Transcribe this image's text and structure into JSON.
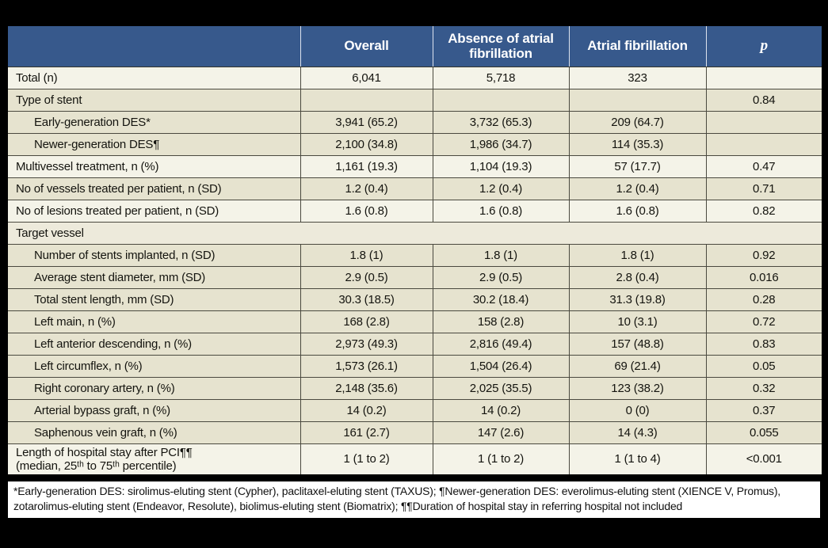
{
  "colors": {
    "header_blue": "#37598c",
    "row_light": "#f4f3e8",
    "row_beige": "#e6e3cf",
    "row_section": "#edeadb",
    "page_background": "#000000",
    "footnote_background": "#ffffff"
  },
  "table": {
    "columns": [
      "",
      "Overall",
      "Absence of atrial fibrillation",
      "Atrial fibrillation",
      "p"
    ],
    "rows": [
      {
        "label": "Total (n)",
        "indent": false,
        "shade": "light",
        "full_width": false,
        "values": [
          "6,041",
          "5,718",
          "323",
          ""
        ]
      },
      {
        "label": "Type of stent",
        "indent": false,
        "shade": "beige",
        "full_width": false,
        "values": [
          "",
          "",
          "",
          "0.84"
        ]
      },
      {
        "label": "Early-generation DES*",
        "indent": true,
        "shade": "beige",
        "full_width": false,
        "values": [
          "3,941 (65.2)",
          "3,732 (65.3)",
          "209 (64.7)",
          ""
        ]
      },
      {
        "label": "Newer-generation DES¶",
        "indent": true,
        "shade": "beige",
        "full_width": false,
        "values": [
          "2,100 (34.8)",
          "1,986 (34.7)",
          "114 (35.3)",
          ""
        ]
      },
      {
        "label": "Multivessel treatment, n (%)",
        "indent": false,
        "shade": "light",
        "full_width": false,
        "values": [
          "1,161 (19.3)",
          "1,104 (19.3)",
          "57 (17.7)",
          "0.47"
        ]
      },
      {
        "label": "No of vessels treated per patient, n (SD)",
        "indent": false,
        "shade": "beige",
        "full_width": false,
        "values": [
          "1.2 (0.4)",
          "1.2 (0.4)",
          "1.2 (0.4)",
          "0.71"
        ]
      },
      {
        "label": "No of lesions treated per patient, n (SD)",
        "indent": false,
        "shade": "light",
        "full_width": false,
        "values": [
          "1.6 (0.8)",
          "1.6 (0.8)",
          "1.6 (0.8)",
          "0.82"
        ]
      },
      {
        "label": "Target vessel",
        "indent": false,
        "shade": "mid",
        "full_width": true,
        "values": [
          "",
          "",
          "",
          ""
        ]
      },
      {
        "label": "Number of stents implanted, n (SD)",
        "indent": true,
        "shade": "beige",
        "full_width": false,
        "values": [
          "1.8 (1)",
          "1.8 (1)",
          "1.8 (1)",
          "0.92"
        ]
      },
      {
        "label": "Average stent diameter, mm (SD)",
        "indent": true,
        "shade": "beige",
        "full_width": false,
        "values": [
          "2.9 (0.5)",
          "2.9 (0.5)",
          "2.8 (0.4)",
          "0.016"
        ]
      },
      {
        "label": "Total stent length, mm (SD)",
        "indent": true,
        "shade": "beige",
        "full_width": false,
        "values": [
          "30.3 (18.5)",
          "30.2 (18.4)",
          "31.3 (19.8)",
          "0.28"
        ]
      },
      {
        "label": "Left main, n (%)",
        "indent": true,
        "shade": "beige",
        "full_width": false,
        "values": [
          "168 (2.8)",
          "158 (2.8)",
          "10 (3.1)",
          "0.72"
        ]
      },
      {
        "label": "Left anterior descending, n (%)",
        "indent": true,
        "shade": "beige",
        "full_width": false,
        "values": [
          "2,973 (49.3)",
          "2,816 (49.4)",
          "157 (48.8)",
          "0.83"
        ]
      },
      {
        "label": "Left circumflex, n (%)",
        "indent": true,
        "shade": "beige",
        "full_width": false,
        "values": [
          "1,573 (26.1)",
          "1,504 (26.4)",
          "69 (21.4)",
          "0.05"
        ]
      },
      {
        "label": "Right coronary artery, n (%)",
        "indent": true,
        "shade": "beige",
        "full_width": false,
        "values": [
          "2,148 (35.6)",
          "2,025 (35.5)",
          "123 (38.2)",
          "0.32"
        ]
      },
      {
        "label": "Arterial bypass graft, n (%)",
        "indent": true,
        "shade": "beige",
        "full_width": false,
        "values": [
          "14 (0.2)",
          "14 (0.2)",
          "0 (0)",
          "0.37"
        ]
      },
      {
        "label": "Saphenous vein graft, n (%)",
        "indent": true,
        "shade": "beige",
        "full_width": false,
        "values": [
          "161 (2.7)",
          "147 (2.6)",
          "14 (4.3)",
          "0.055"
        ]
      },
      {
        "label": "Length of hospital stay after PCI¶¶",
        "label2": "(median, 25ᵗʰ to 75ᵗʰ percentile)",
        "indent": false,
        "shade": "light",
        "full_width": false,
        "values": [
          "1 (1 to 2)",
          "1 (1 to 2)",
          "1 (1 to 4)",
          "<0.001"
        ]
      }
    ]
  },
  "footnote": "*Early-generation DES: sirolimus-eluting stent (Cypher), paclitaxel-eluting stent (TAXUS); ¶Newer-generation DES: everolimus-eluting stent (XIENCE V, Promus), zotarolimus-eluting stent (Endeavor, Resolute), biolimus-eluting stent (Biomatrix); ¶¶Duration of hospital stay in referring hospital not included"
}
